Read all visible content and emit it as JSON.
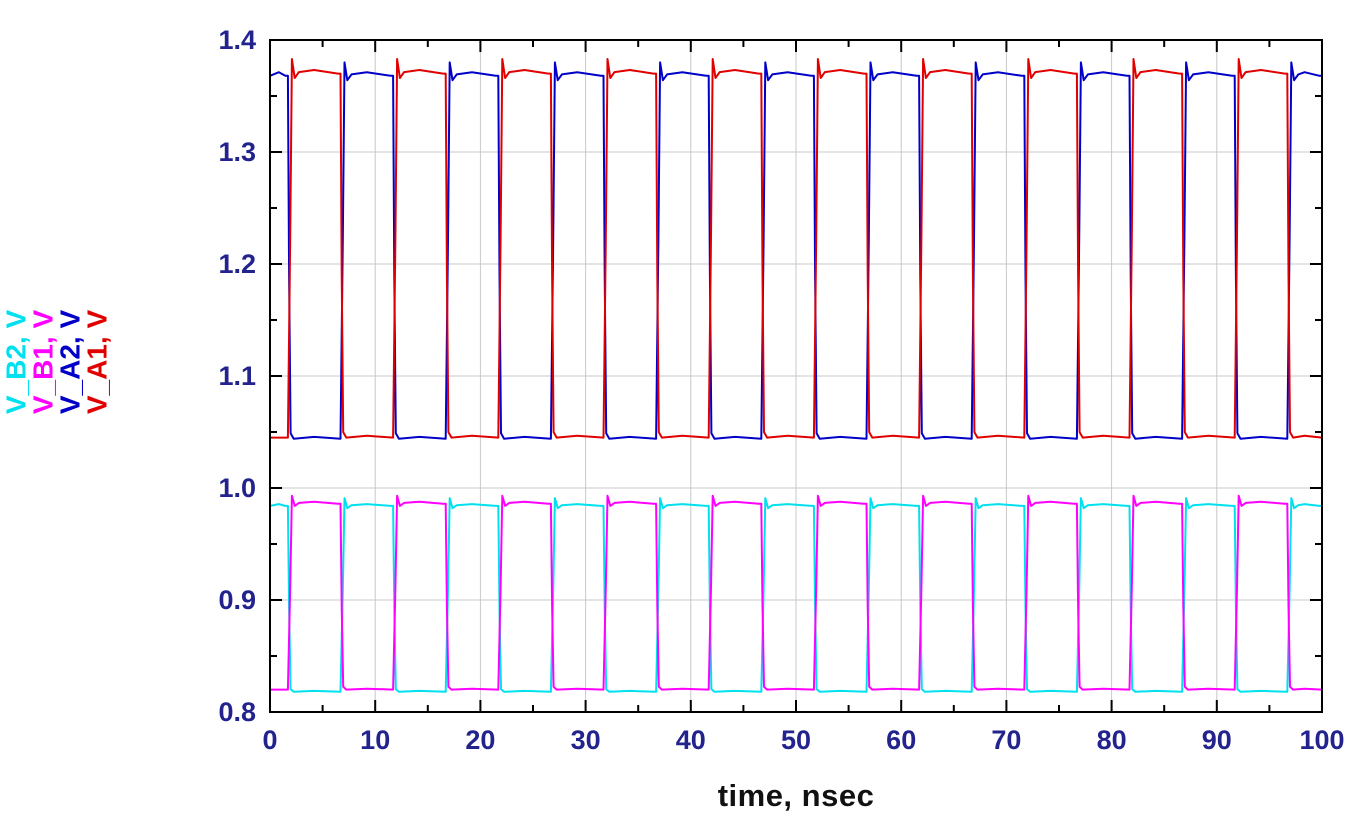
{
  "chart_data": {
    "type": "line",
    "title": "",
    "xlabel": "time, nsec",
    "xlim": [
      0,
      100
    ],
    "ylim": [
      0.8,
      1.4
    ],
    "x_major_ticks": [
      0,
      10,
      20,
      30,
      40,
      50,
      60,
      70,
      80,
      90,
      100
    ],
    "x_tick_labels": [
      "0",
      "10",
      "20",
      "30",
      "40",
      "50",
      "60",
      "70",
      "80",
      "90",
      "100"
    ],
    "x_minor_ticks": [
      5,
      15,
      25,
      35,
      45,
      55,
      65,
      75,
      85,
      95
    ],
    "y_major_ticks": [
      0.8,
      0.9,
      1.0,
      1.1,
      1.2,
      1.3,
      1.4
    ],
    "y_tick_labels": [
      "0.8",
      "0.9",
      "1.0",
      "1.1",
      "1.2",
      "1.3",
      "1.4"
    ],
    "y_minor_ticks": [
      0.85,
      0.95,
      1.05,
      1.15,
      1.25,
      1.35
    ],
    "grid": true,
    "legend_position": "left-rotated",
    "axis_labels_rotated": [
      {
        "text": "V_B2, V",
        "color": "#00e0ee"
      },
      {
        "text": "V_B1, V",
        "color": "#ff00ff"
      },
      {
        "text": "V_A2, V",
        "color": "#0000c8"
      },
      {
        "text": "V_A1, V",
        "color": "#e00000"
      }
    ],
    "colors": {
      "grid": "#c8c8c8",
      "axis": "#000000",
      "tick_text": "#23238e",
      "axis_title": "#111111",
      "background": "#ffffff"
    },
    "series": [
      {
        "name": "V_B2",
        "color": "#00e0ee",
        "low": 0.818,
        "high": 0.984,
        "overshoot": 0.991,
        "period": 10,
        "high_intervals": [
          [
            0,
            1.7
          ],
          [
            6.7,
            11.7
          ],
          [
            16.7,
            21.7
          ],
          [
            26.7,
            31.7
          ],
          [
            36.7,
            41.7
          ],
          [
            46.7,
            51.7
          ],
          [
            56.7,
            61.7
          ],
          [
            66.7,
            71.7
          ],
          [
            76.7,
            81.7
          ],
          [
            86.7,
            91.7
          ],
          [
            96.7,
            100
          ]
        ]
      },
      {
        "name": "V_B1",
        "color": "#ff00ff",
        "low": 0.82,
        "high": 0.986,
        "overshoot": 0.993,
        "period": 10,
        "high_intervals": [
          [
            1.7,
            6.7
          ],
          [
            11.7,
            16.7
          ],
          [
            21.7,
            26.7
          ],
          [
            31.7,
            36.7
          ],
          [
            41.7,
            46.7
          ],
          [
            51.7,
            56.7
          ],
          [
            61.7,
            66.7
          ],
          [
            71.7,
            76.7
          ],
          [
            81.7,
            86.7
          ],
          [
            91.7,
            96.7
          ]
        ]
      },
      {
        "name": "V_A2",
        "color": "#0000c8",
        "low": 1.044,
        "high": 1.368,
        "overshoot": 1.38,
        "period": 10,
        "high_intervals": [
          [
            0,
            1.7
          ],
          [
            6.7,
            11.7
          ],
          [
            16.7,
            21.7
          ],
          [
            26.7,
            31.7
          ],
          [
            36.7,
            41.7
          ],
          [
            46.7,
            51.7
          ],
          [
            56.7,
            61.7
          ],
          [
            66.7,
            71.7
          ],
          [
            76.7,
            81.7
          ],
          [
            86.7,
            91.7
          ],
          [
            96.7,
            100
          ]
        ]
      },
      {
        "name": "V_A1",
        "color": "#e00000",
        "low": 1.045,
        "high": 1.37,
        "overshoot": 1.383,
        "period": 10,
        "high_intervals": [
          [
            1.7,
            6.7
          ],
          [
            11.7,
            16.7
          ],
          [
            21.7,
            26.7
          ],
          [
            31.7,
            36.7
          ],
          [
            41.7,
            46.7
          ],
          [
            51.7,
            56.7
          ],
          [
            61.7,
            66.7
          ],
          [
            71.7,
            76.7
          ],
          [
            81.7,
            86.7
          ],
          [
            91.7,
            96.7
          ]
        ]
      }
    ]
  }
}
